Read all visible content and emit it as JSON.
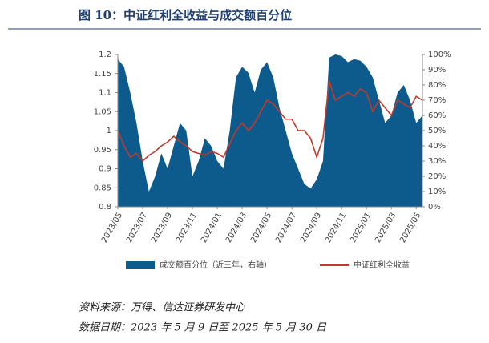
{
  "chart_data": {
    "type": "area_line",
    "title": "图 10：中证红利全收益与成交额百分位",
    "source": "资料来源：万得、信达证券研发中心",
    "date_note": "数据日期：2023 年 5 月 9 日至 2025 年 5 月 30 日",
    "categories": [
      "2023/05",
      null,
      null,
      null,
      "2023/07",
      null,
      null,
      null,
      "2023/09",
      null,
      null,
      null,
      "2023/11",
      null,
      null,
      null,
      "2024/01",
      null,
      null,
      null,
      "2024/03",
      null,
      null,
      null,
      "2024/05",
      null,
      null,
      null,
      "2024/07",
      null,
      null,
      null,
      "2024/09",
      null,
      null,
      null,
      "2024/11",
      null,
      null,
      null,
      "2025/01",
      null,
      null,
      null,
      "2025/03",
      null,
      null,
      null,
      "2025/05",
      null
    ],
    "series": [
      {
        "name": "成交额百分位（近三年，右轴）",
        "color": "#0d5b8c",
        "axis": "y2",
        "kind": "area",
        "values": [
          97,
          92,
          75,
          55,
          30,
          10,
          20,
          35,
          25,
          40,
          55,
          50,
          20,
          30,
          45,
          40,
          30,
          25,
          50,
          85,
          92,
          88,
          75,
          90,
          95,
          85,
          65,
          50,
          35,
          25,
          15,
          12,
          18,
          30,
          98,
          100,
          99,
          95,
          97,
          96,
          92,
          85,
          70,
          55,
          60,
          75,
          80,
          70,
          55,
          60
        ]
      },
      {
        "name": "中证红利全收益",
        "color": "#c0392b",
        "kind": "line",
        "values": [
          1.0,
          0.96,
          0.93,
          0.94,
          0.92,
          0.935,
          0.945,
          0.96,
          0.97,
          0.985,
          0.97,
          0.96,
          0.945,
          0.94,
          0.935,
          0.945,
          0.94,
          0.93,
          0.965,
          1.0,
          1.02,
          1.0,
          1.02,
          1.05,
          1.08,
          1.07,
          1.05,
          1.03,
          1.03,
          1.0,
          1.0,
          0.98,
          0.93,
          0.98,
          1.13,
          1.08,
          1.09,
          1.1,
          1.09,
          1.11,
          1.1,
          1.05,
          1.08,
          1.06,
          1.04,
          1.08,
          1.07,
          1.06,
          1.09,
          1.08
        ]
      }
    ],
    "ylim": [
      0.8,
      1.2
    ],
    "yticks": [
      0.8,
      0.85,
      0.9,
      0.95,
      1,
      1.05,
      1.1,
      1.15,
      1.2
    ],
    "y2lim": [
      0,
      100
    ],
    "y2ticks": [
      {
        "value": 0,
        "label": "0%"
      },
      {
        "value": 10,
        "label": "10%"
      },
      {
        "value": 20,
        "label": "20%"
      },
      {
        "value": 30,
        "label": "30%"
      },
      {
        "value": 40,
        "label": "40%"
      },
      {
        "value": 50,
        "label": "50%"
      },
      {
        "value": 60,
        "label": "60%"
      },
      {
        "value": 70,
        "label": "70%"
      },
      {
        "value": 80,
        "label": "80%"
      },
      {
        "value": 90,
        "label": "90%"
      },
      {
        "value": 100,
        "label": "100%"
      }
    ],
    "legend": "bottom"
  }
}
